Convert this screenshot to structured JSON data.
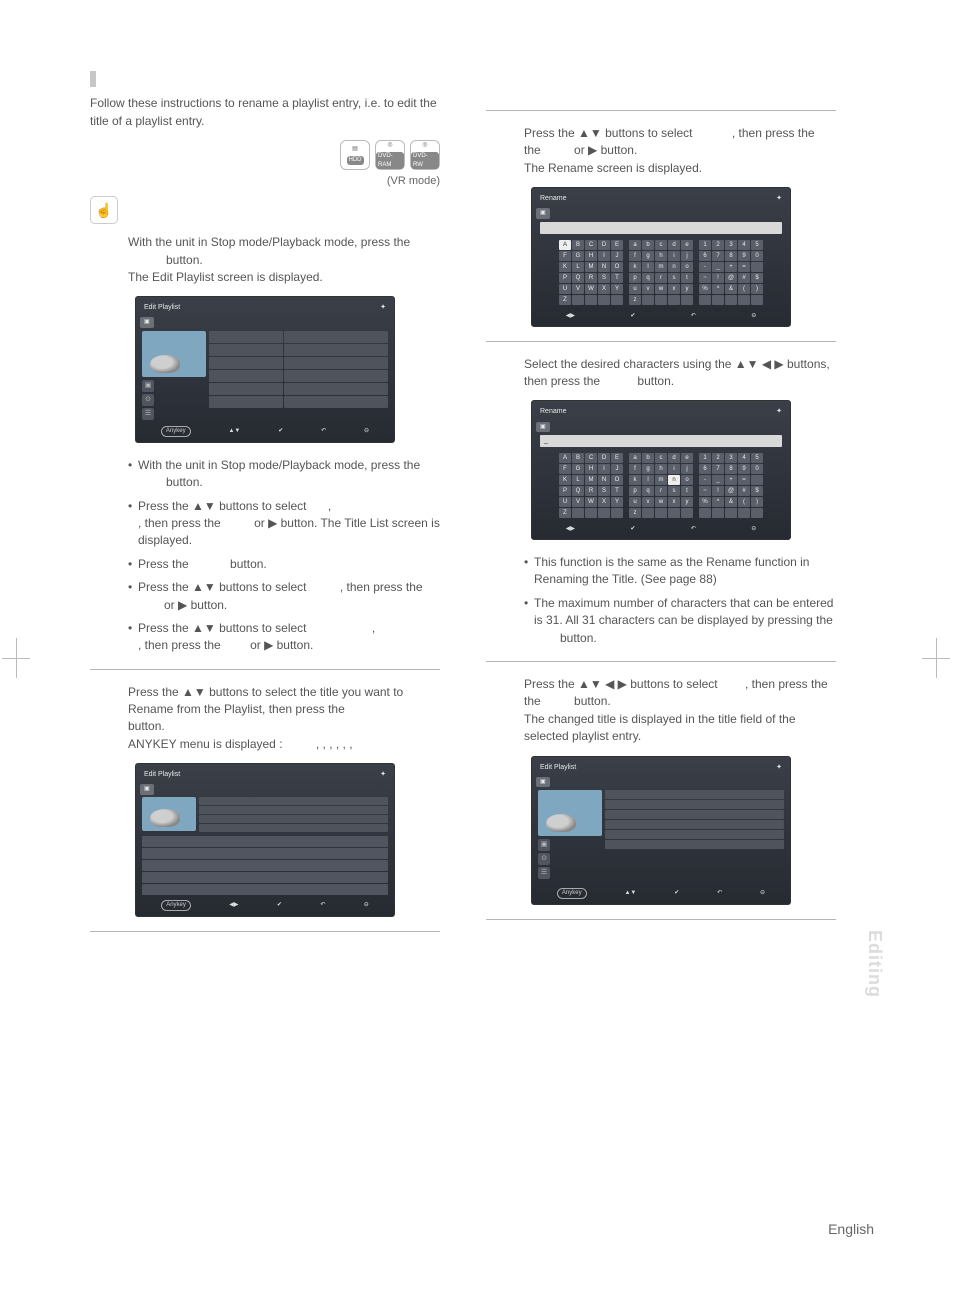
{
  "intro": "Follow these instructions to rename a playlist entry, i.e. to edit the title of a playlist entry.",
  "discs": {
    "hdd": "HDD",
    "ram": "DVD-RAM",
    "rw": "DVD-RW"
  },
  "vr_mode": "(VR mode)",
  "step1": {
    "a": "With the unit in Stop mode/Playback mode, press the",
    "b": "button.",
    "c": "The Edit Playlist screen is displayed."
  },
  "alt_bullets": {
    "b1a": "With the unit in Stop mode/Playback mode, press the",
    "b1b": "button.",
    "b2a": "Press the ▲▼ buttons to select",
    "b2b": ", then press the",
    "b2c": "or ▶ button. The Title List screen is displayed.",
    "b3a": "Press the",
    "b3b": "button.",
    "b4a": "Press the ▲▼ buttons to select",
    "b4b": ", then press the",
    "b4c": "or ▶ button.",
    "b5a": "Press the ▲▼ buttons to select",
    "b5b": ", then press the",
    "b5c": "or ▶ button."
  },
  "step2": {
    "a": "Press the ▲▼ buttons to select the title you want to Rename from the Playlist, then press the",
    "b": "button.",
    "c": "ANYKEY menu is displayed :",
    "items": ",        ,        ,        ,                     ,                     ,"
  },
  "step3": {
    "a": "Press the  ▲▼ buttons to select",
    "b": ", then press the",
    "c": "or ▶ button.",
    "d": "The Rename screen is displayed."
  },
  "step4": {
    "a": "Select the desired characters using the ▲▼ ◀ ▶ buttons, then press the",
    "b": "button."
  },
  "notes": {
    "n1": "This function is the same as the Rename function in Renaming the Title. (See page 88)",
    "n2": "The maximum number of characters that can be entered is 31. All 31 characters can be displayed by pressing the",
    "n2b": "button."
  },
  "step5": {
    "a": "Press the ▲▼ ◀ ▶ buttons to select",
    "b": ", then press the",
    "c": "button.",
    "d": "The changed title is displayed in the title field of the selected playlist entry."
  },
  "keyboard": {
    "upper": [
      "A",
      "B",
      "C",
      "D",
      "E",
      "F",
      "G",
      "H",
      "I",
      "J",
      "K",
      "L",
      "M",
      "N",
      "O",
      "P",
      "Q",
      "R",
      "S",
      "T",
      "U",
      "V",
      "W",
      "X",
      "Y",
      "Z",
      "",
      "",
      "",
      ""
    ],
    "lower": [
      "a",
      "b",
      "c",
      "d",
      "e",
      "f",
      "g",
      "h",
      "i",
      "j",
      "k",
      "l",
      "m",
      "n",
      "o",
      "p",
      "q",
      "r",
      "s",
      "t",
      "u",
      "v",
      "w",
      "x",
      "y",
      "z",
      "",
      "",
      "",
      ""
    ],
    "sym": [
      "1",
      "2",
      "3",
      "4",
      "5",
      "6",
      "7",
      "8",
      "9",
      "0",
      "-",
      "_",
      "+",
      "=",
      "",
      "~",
      "!",
      "@",
      "#",
      "$",
      "%",
      "^",
      "&",
      "(",
      ")",
      "",
      "",
      "",
      "",
      ""
    ]
  },
  "side_tab": "Editing",
  "footer_lang": "English",
  "anykey": "Anykey"
}
